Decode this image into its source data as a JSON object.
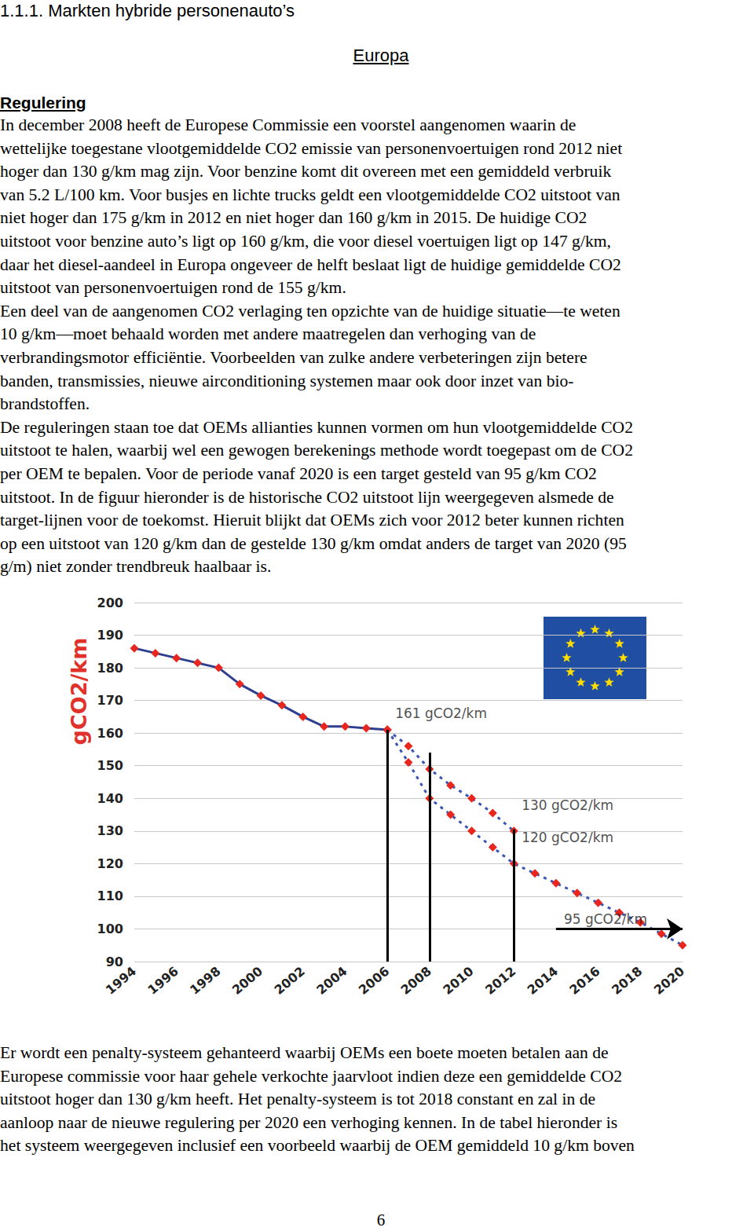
{
  "heading": "1.1.1. Markten hybride personenauto’s",
  "section": "Europa",
  "subsection": "Regulering",
  "paragraphs": [
    [
      "In december 2008 heeft de Europese Commissie een voorstel aangenomen waarin de",
      "wettelijke toegestane vlootgemiddelde CO2 emissie van personenvoertuigen rond 2012 niet",
      "hoger dan 130 g/km mag zijn. Voor benzine komt dit overeen met een gemiddeld verbruik",
      "van 5.2 L/100 km. Voor busjes en lichte trucks geldt een vlootgemiddelde CO2 uitstoot van",
      "niet hoger dan 175 g/km in 2012 en niet hoger dan 160 g/km in 2015. De huidige CO2",
      "uitstoot voor benzine auto’s ligt op 160 g/km, die voor diesel voertuigen ligt op 147 g/km,",
      "daar het diesel-aandeel in Europa ongeveer de helft beslaat ligt de huidige gemiddelde CO2",
      "uitstoot van personenvoertuigen rond de 155 g/km."
    ],
    [
      "Een deel van de aangenomen CO2 verlaging ten opzichte van de huidige situatie—te weten",
      "10 g/km—moet behaald worden met andere maatregelen dan verhoging van de",
      "verbrandingsmotor efficiëntie. Voorbeelden van zulke andere verbeteringen zijn betere",
      "banden, transmissies, nieuwe airconditioning systemen maar ook door inzet van bio-",
      "brandstoffen."
    ],
    [
      "De reguleringen staan toe dat OEMs allianties kunnen vormen om hun vlootgemiddelde CO2",
      "uitstoot te halen, waarbij wel een gewogen berekenings methode wordt toegepast om de CO2",
      "per OEM te bepalen. Voor de periode vanaf 2020 is een target gesteld van 95 g/km CO2",
      "uitstoot. In de figuur hieronder is de historische CO2 uitstoot lijn weergegeven alsmede de",
      "target-lijnen voor de toekomst. Hieruit blijkt dat OEMs zich voor 2012 beter kunnen richten",
      "op een uitstoot van 120 g/km dan de gestelde 130 g/km omdat anders de target van 2020 (95",
      "g/m) niet zonder trendbreuk haalbaar is."
    ]
  ],
  "chart_data": {
    "type": "line",
    "y_label": "gCO2/km",
    "categories": [
      "1994",
      null,
      "1996",
      null,
      "1998",
      null,
      "2000",
      null,
      "2002",
      null,
      "2004",
      null,
      "2006",
      null,
      "2008",
      null,
      "2010",
      null,
      "2012",
      null,
      "2014",
      null,
      "2016",
      null,
      "2018",
      null,
      "2020"
    ],
    "series": [
      {
        "color": "#2f3f8f",
        "marker": "diamond",
        "line_style": "solid",
        "values": [
          186,
          184.5,
          183,
          181.5,
          180,
          175,
          171.5,
          168.5,
          165,
          162,
          162,
          161.5,
          161,
          null,
          null,
          null,
          null,
          null,
          null,
          null,
          null,
          null,
          null,
          null,
          null,
          null,
          null
        ]
      },
      {
        "color": "#3a55b4",
        "marker": "diamond",
        "line_style": "dashed",
        "values": [
          null,
          null,
          null,
          null,
          null,
          null,
          null,
          null,
          null,
          null,
          null,
          null,
          161,
          156,
          149,
          144,
          140,
          135.5,
          130,
          null,
          null,
          null,
          null,
          null,
          null,
          null,
          null
        ]
      },
      {
        "color": "#3a55b4",
        "marker": "diamond",
        "line_style": "dashed",
        "values": [
          null,
          null,
          null,
          null,
          null,
          null,
          null,
          null,
          null,
          null,
          null,
          null,
          161,
          151,
          140,
          135,
          130,
          125,
          120,
          117,
          114,
          111,
          108,
          105,
          102,
          98.5,
          95
        ]
      }
    ],
    "annotations": [
      {
        "text": "161 gCO2/km",
        "x": "2006",
        "y": 166
      },
      {
        "text": "130 gCO2/km",
        "x": "2012",
        "y": 138
      },
      {
        "text": "120 gCO2/km",
        "x": "2012",
        "y": 128
      },
      {
        "text": "95 gCO2/km",
        "x": "2014",
        "y": 103
      }
    ],
    "vertical_lines": [
      {
        "x": "2006",
        "y": 161
      },
      {
        "x": "2008",
        "y": 154
      },
      {
        "x": "2012",
        "y": 130.5
      }
    ],
    "arrow": {
      "x": [
        "2014",
        "2020"
      ],
      "y": 100
    },
    "ylim": [
      90,
      200
    ],
    "yticks": [
      90,
      100,
      110,
      120,
      130,
      140,
      150,
      160,
      170,
      180,
      190,
      200
    ],
    "grid": true
  },
  "after_chart": [
    [
      "Er wordt een penalty-systeem gehanteerd waarbij OEMs een boete moeten betalen aan de",
      "Europese commissie voor haar gehele verkochte jaarvloot indien deze een gemiddelde CO2",
      "uitstoot hoger dan 130 g/km heeft. Het penalty-systeem is tot 2018 constant en zal in de",
      "aanloop naar de nieuwe regulering per 2020 een verhoging kennen. In de tabel hieronder is",
      "het systeem weergegeven inclusief een voorbeeld waarbij de OEM gemiddeld 10 g/km boven"
    ]
  ],
  "page_number": "6"
}
